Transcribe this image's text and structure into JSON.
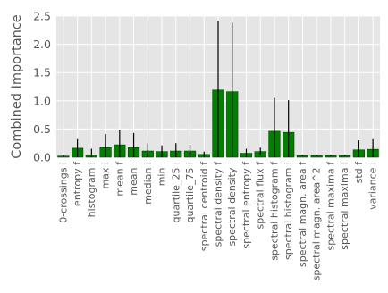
{
  "chart_data": {
    "type": "bar",
    "title": "",
    "xlabel": "",
    "ylabel": "Combined Importance",
    "ylim": [
      0,
      2.5
    ],
    "yticks": [
      "0.0",
      "0.5",
      "1.0",
      "1.5",
      "2.0",
      "2.5"
    ],
    "grid": true,
    "legend": "none",
    "colors": {
      "bar": "#008000",
      "bar_edge": "#0a3a0a",
      "error": "#000000",
      "background": "#e5e5e5",
      "grid": "#ffffff"
    },
    "categories": [
      "0-crossings i",
      "entropy f",
      "histogram i",
      "max i",
      "mean f",
      "mean i",
      "median i",
      "min i",
      "quartile_25 i",
      "quartile_75 i",
      "spectral centroid f",
      "spectral density f",
      "spectral density i",
      "spectral entropy f",
      "spectral flux f",
      "spectral histogram f",
      "spectral histogram i",
      "spectral magn. area f",
      "spectral magn. area^2 i",
      "spectral maxima f",
      "spectral maxima i",
      "std f",
      "variance i"
    ],
    "values": [
      0.02,
      0.16,
      0.04,
      0.17,
      0.22,
      0.17,
      0.11,
      0.1,
      0.11,
      0.11,
      0.05,
      1.19,
      1.16,
      0.07,
      0.1,
      0.46,
      0.44,
      0.03,
      0.03,
      0.03,
      0.03,
      0.13,
      0.14
    ],
    "errors": [
      0.02,
      0.16,
      0.11,
      0.24,
      0.27,
      0.26,
      0.14,
      0.11,
      0.14,
      0.11,
      0.05,
      1.23,
      1.22,
      0.08,
      0.07,
      0.59,
      0.57,
      0.01,
      0.01,
      0.01,
      0.01,
      0.17,
      0.18
    ]
  }
}
